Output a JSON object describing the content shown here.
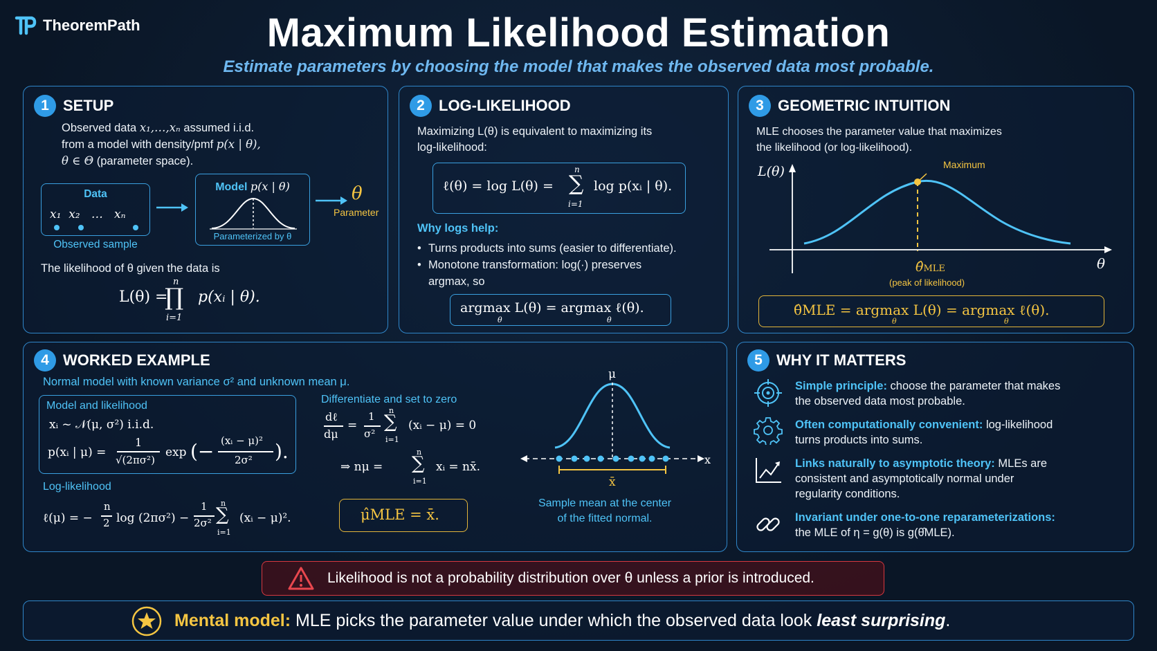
{
  "brand": {
    "name": "TheoremPath"
  },
  "header": {
    "title": "Maximum Likelihood Estimation",
    "subtitle": "Estimate parameters by choosing the model that makes the observed data most probable."
  },
  "setup": {
    "num": "1",
    "title": "SETUP",
    "line1_a": "Observed data",
    "line1_math": "x₁,…,xₙ",
    "line1_b": "assumed i.i.d.",
    "line2_a": "from a model with density/pmf",
    "line2_math": "p(x | θ),",
    "line3_math": "θ ∈ Θ",
    "line3_b": "(parameter space).",
    "data_label": "Data",
    "data_math": "x₁  x₂   …   xₙ",
    "observed_label": "Observed sample",
    "model_label": "Model",
    "model_math": "p(x | θ)",
    "parameterized_label": "Parameterized by θ",
    "theta_symbol": "θ",
    "parameter_label": "Parameter",
    "likelihood_text": "The likelihood of θ given the data is",
    "likelihood_formula_lhs": "L(θ) =",
    "likelihood_formula_rhs": "p(xᵢ | θ).",
    "prod_sup": "n",
    "prod_sub": "i=1"
  },
  "loglik": {
    "num": "2",
    "title": "LOG-LIKELIHOOD",
    "intro_a": "Maximizing L(θ) is equivalent to maximizing its",
    "intro_b": "log-likelihood:",
    "formula_lhs": "ℓ(θ) = log L(θ) =",
    "formula_rhs": "log p(xᵢ | θ).",
    "sum_sup": "n",
    "sum_sub": "i=1",
    "why_title": "Why logs help:",
    "bullet1": "Turns products into sums (easier to differentiate).",
    "bullet2a": "Monotone transformation: log(·) preserves",
    "bullet2b": "argmax, so",
    "argmax_formula": "argmax L(θ) = argmax ℓ(θ).",
    "argmax_sub1": "θ",
    "argmax_sub2": "θ"
  },
  "geometric": {
    "num": "3",
    "title": "GEOMETRIC INTUITION",
    "intro_a": "MLE chooses the parameter value that maximizes",
    "intro_b": "the likelihood (or log-likelihood).",
    "y_axis_label": "L(θ)",
    "x_axis_label": "θ",
    "max_label": "Maximum",
    "theta_hat_label": "θ̂",
    "theta_hat_sub": "MLE",
    "peak_label": "(peak of likelihood)",
    "formula": "θ̂MLE = argmax L(θ) = argmax ℓ(θ).",
    "formula_sub1": "θ",
    "formula_sub2": "θ"
  },
  "worked": {
    "num": "4",
    "title": "WORKED EXAMPLE",
    "intro": "Normal model with known variance σ² and unknown mean μ.",
    "model_title": "Model and likelihood",
    "model_line1": "xᵢ ~ 𝒩(μ, σ²)  i.i.d.",
    "model_line2_lhs": "p(xᵢ | μ) =",
    "model_frac_num": "1",
    "model_frac_den": "√(2πσ²)",
    "model_exp": "exp",
    "model_exp_num": "(xᵢ − μ)²",
    "model_exp_den": "2σ²",
    "loglik_title": "Log-likelihood",
    "loglik_formula_a": "ℓ(μ) = −",
    "loglik_n_num": "n",
    "loglik_n_den": "2",
    "loglik_formula_b": "log (2πσ²) −",
    "loglik_one_num": "1",
    "loglik_one_den": "2σ²",
    "loglik_formula_c": "(xᵢ − μ)².",
    "diff_title": "Differentiate and set to zero",
    "diff_lhs_num": "dℓ",
    "diff_lhs_den": "dμ",
    "diff_frac_num": "1",
    "diff_frac_den": "σ²",
    "diff_rhs": "(xᵢ − μ) = 0",
    "implies_lhs": "⇒ nμ =",
    "implies_rhs": "xᵢ = nx̄.",
    "result": "μ̂MLE = x̄.",
    "plot_mu": "μ",
    "plot_x": "x",
    "plot_xbar": "x̄",
    "plot_caption_a": "Sample mean at the center",
    "plot_caption_b": "of the fitted normal."
  },
  "why": {
    "num": "5",
    "title": "WHY IT MATTERS",
    "items": [
      {
        "icon": "target-icon",
        "bold": "Simple principle:",
        "text_a": " choose the parameter that makes",
        "text_b": "the observed data most probable."
      },
      {
        "icon": "gear-icon",
        "bold": "Often computationally convenient:",
        "text_a": " log-likelihood",
        "text_b": "turns products into sums."
      },
      {
        "icon": "growth-chart-icon",
        "bold": "Links naturally to asymptotic theory:",
        "text_a": " MLEs are",
        "text_b": "consistent and asymptotically normal under",
        "text_c": "regularity conditions."
      },
      {
        "icon": "link-icon",
        "bold": "Invariant under one-to-one reparameterizations:",
        "text_b": "the MLE of η = g(θ) is g(θ̂MLE)."
      }
    ]
  },
  "warning": {
    "bold": "Likelihood",
    "text": " is not a probability distribution over  θ  unless a prior is introduced."
  },
  "mental": {
    "label": "Mental model:",
    "text_a": "MLE picks the parameter value under which the observed data look",
    "text_b": "least surprising",
    "text_c": "."
  },
  "colors": {
    "accent": "#2f9be6",
    "gold": "#e3b53a",
    "cyan": "#4fc3f7",
    "warn": "#d8383f",
    "background": "#0b1a2e"
  }
}
